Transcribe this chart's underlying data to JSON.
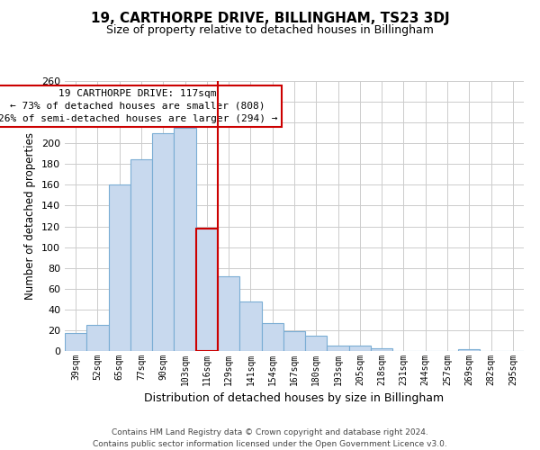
{
  "title": "19, CARTHORPE DRIVE, BILLINGHAM, TS23 3DJ",
  "subtitle": "Size of property relative to detached houses in Billingham",
  "xlabel": "Distribution of detached houses by size in Billingham",
  "ylabel": "Number of detached properties",
  "categories": [
    "39sqm",
    "52sqm",
    "65sqm",
    "77sqm",
    "90sqm",
    "103sqm",
    "116sqm",
    "129sqm",
    "141sqm",
    "154sqm",
    "167sqm",
    "180sqm",
    "193sqm",
    "205sqm",
    "218sqm",
    "231sqm",
    "244sqm",
    "257sqm",
    "269sqm",
    "282sqm",
    "295sqm"
  ],
  "values": [
    17,
    25,
    160,
    185,
    210,
    215,
    118,
    72,
    48,
    27,
    19,
    15,
    5,
    5,
    3,
    0,
    0,
    0,
    2,
    0,
    0
  ],
  "bar_color": "#c8d9ee",
  "bar_edge_color": "#7aadd4",
  "highlight_index": 6,
  "highlight_line_color": "#cc0000",
  "ylim": [
    0,
    260
  ],
  "yticks": [
    0,
    20,
    40,
    60,
    80,
    100,
    120,
    140,
    160,
    180,
    200,
    220,
    240,
    260
  ],
  "annotation_title": "19 CARTHORPE DRIVE: 117sqm",
  "annotation_line1": "← 73% of detached houses are smaller (808)",
  "annotation_line2": "26% of semi-detached houses are larger (294) →",
  "annotation_box_color": "#ffffff",
  "annotation_box_edge": "#cc0000",
  "footer1": "Contains HM Land Registry data © Crown copyright and database right 2024.",
  "footer2": "Contains public sector information licensed under the Open Government Licence v3.0.",
  "background_color": "#ffffff",
  "grid_color": "#cccccc"
}
